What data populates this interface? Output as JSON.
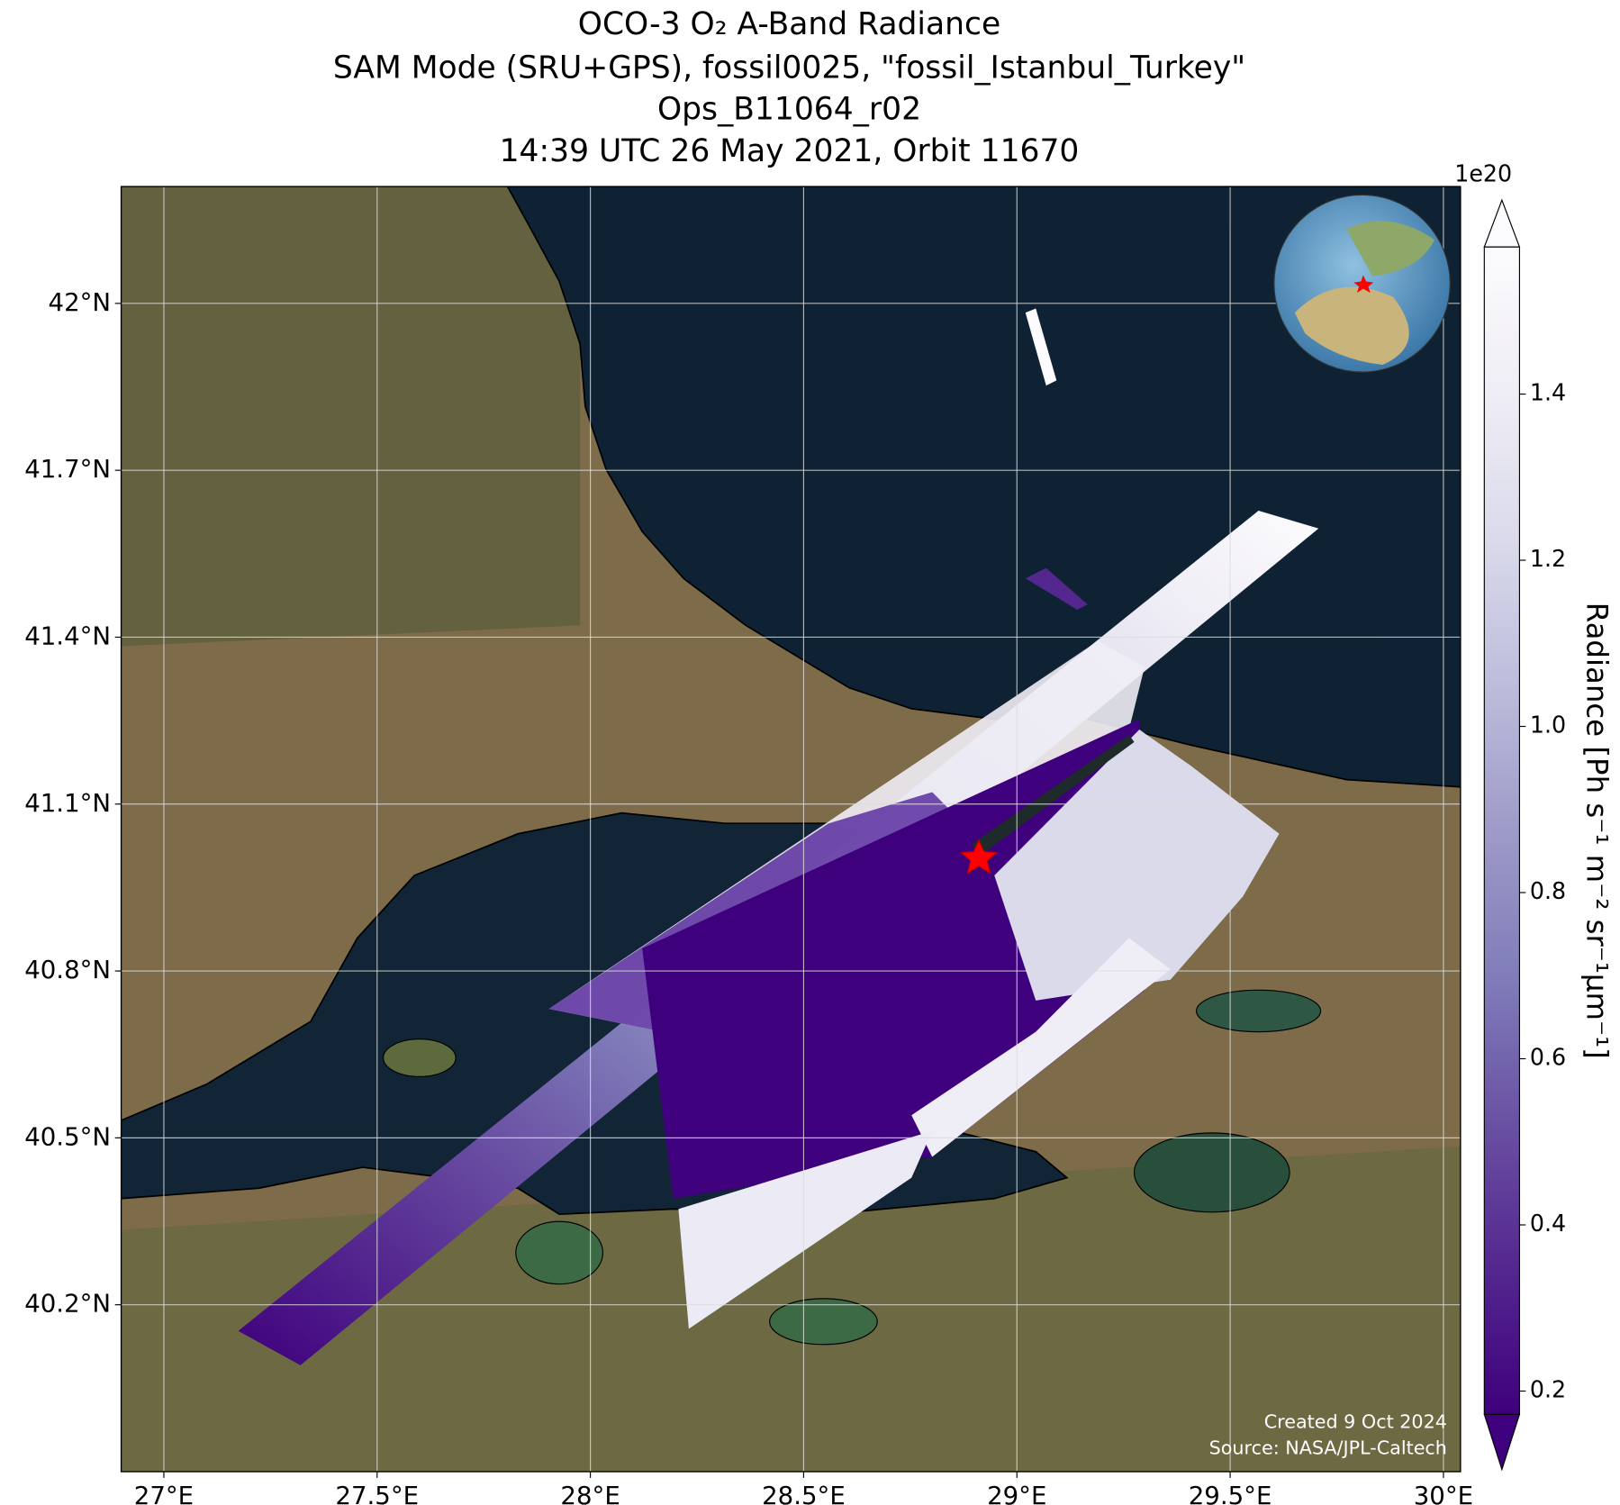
{
  "title": [
    "OCO-3 O₂ A-Band Radiance",
    "SAM Mode (SRU+GPS), fossil0025, \"fossil_Istanbul_Turkey\"",
    "Ops_B11064_r02",
    "14:39 UTC 26 May 2021, Orbit 11670"
  ],
  "map": {
    "xlim": [
      26.9,
      30.04
    ],
    "ylim": [
      39.9,
      42.21
    ],
    "grid": true,
    "xticks": [
      {
        "value": 27,
        "label": "27°E"
      },
      {
        "value": 27.5,
        "label": "27.5°E"
      },
      {
        "value": 28,
        "label": "28°E"
      },
      {
        "value": 28.5,
        "label": "28.5°E"
      },
      {
        "value": 29,
        "label": "29°E"
      },
      {
        "value": 29.5,
        "label": "29.5°E"
      },
      {
        "value": 30,
        "label": "30°E"
      }
    ],
    "yticks": [
      {
        "value": 40.2,
        "label": "40.2°N"
      },
      {
        "value": 40.5,
        "label": "40.5°N"
      },
      {
        "value": 40.8,
        "label": "40.8°N"
      },
      {
        "value": 41.1,
        "label": "41.1°N"
      },
      {
        "value": 41.4,
        "label": "41.4°N"
      },
      {
        "value": 41.7,
        "label": "41.7°N"
      },
      {
        "value": 42,
        "label": "42°N"
      }
    ]
  },
  "colorbar": {
    "label": "Radiance [Ph s⁻¹ m⁻² sr⁻¹μm⁻¹]",
    "exponent": "1e20",
    "lim": [
      0.172,
      1.577
    ],
    "ticks": [
      0.2,
      0.4,
      0.6,
      0.8,
      {
        "value": 1,
        "label": "1.0"
      },
      1.2,
      1.4
    ],
    "colormap": [
      "#3f007d",
      "#54278f",
      "#6a51a3",
      "#807dba",
      "#9e9ac8",
      "#bcbddc",
      "#dadaeb",
      "#efedf5",
      "#fcfbfd"
    ]
  },
  "annotations": [
    "Created 9 Oct 2024",
    "Source: NASA/JPL-Caltech"
  ]
}
